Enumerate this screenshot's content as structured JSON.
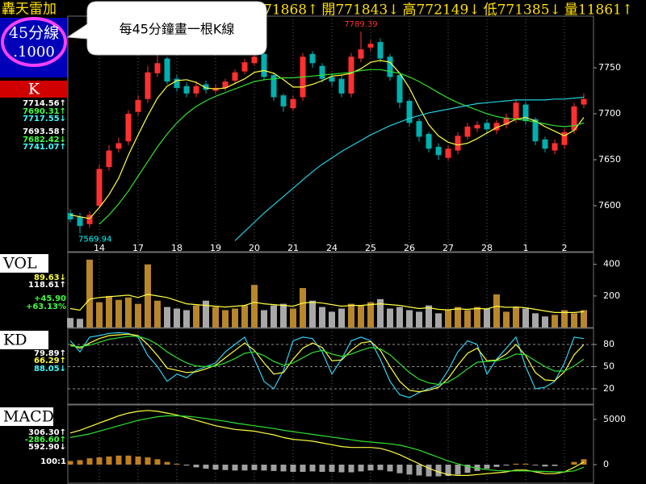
{
  "header": {
    "title": "轟天雷加",
    "quotes": [
      "71868↑",
      "開771843↓",
      "高772149↓",
      "低771385↓",
      "量11861↑"
    ]
  },
  "period": {
    "label": "45分線",
    "value": ".1000"
  },
  "callout": "每45分鐘畫一根K線",
  "chart_data": [
    {
      "type": "candlestick",
      "panel_label": "K",
      "categories": [
        null,
        null,
        null,
        "14",
        null,
        null,
        null,
        "17",
        null,
        null,
        null,
        "18",
        null,
        null,
        null,
        "19",
        null,
        null,
        null,
        "20",
        null,
        null,
        null,
        "21",
        null,
        null,
        null,
        "24",
        null,
        null,
        null,
        "25",
        null,
        null,
        null,
        "26",
        null,
        null,
        null,
        "27",
        null,
        null,
        null,
        "28",
        null,
        null,
        null,
        "1",
        null,
        null,
        null,
        "2",
        null,
        null
      ],
      "open": [
        7592,
        7588,
        7580,
        7600,
        7642,
        7662,
        7670,
        7702,
        7716,
        7744,
        7760,
        7738,
        7730,
        7722,
        7732,
        7725,
        7728,
        7736,
        7746,
        7755,
        7765,
        7742,
        7720,
        7706,
        7718,
        7765,
        7752,
        7740,
        7738,
        7722,
        7760,
        7772,
        7778,
        7762,
        7742,
        7714,
        7692,
        7678,
        7664,
        7652,
        7660,
        7675,
        7684,
        7690,
        7682,
        7688,
        7694,
        7710,
        7694,
        7672,
        7660,
        7666,
        7682,
        7710
      ],
      "high": [
        7596,
        7592,
        7594,
        7645,
        7666,
        7674,
        7704,
        7720,
        7752,
        7768,
        7762,
        7742,
        7734,
        7735,
        7736,
        7732,
        7738,
        7748,
        7760,
        7766,
        7768,
        7745,
        7722,
        7720,
        7766,
        7768,
        7755,
        7744,
        7742,
        7766,
        7789.39,
        7780,
        7782,
        7765,
        7745,
        7716,
        7695,
        7680,
        7668,
        7665,
        7680,
        7690,
        7692,
        7694,
        7693,
        7700,
        7716,
        7713,
        7696,
        7675,
        7672,
        7684,
        7712,
        7722
      ],
      "low": [
        7582,
        7569.94,
        7576,
        7598,
        7638,
        7658,
        7666,
        7698,
        7712,
        7740,
        7732,
        7724,
        7718,
        7718,
        7722,
        7722,
        7725,
        7733,
        7743,
        7752,
        7736,
        7714,
        7702,
        7703,
        7714,
        7750,
        7734,
        7730,
        7718,
        7718,
        7756,
        7768,
        7756,
        7736,
        7706,
        7686,
        7670,
        7658,
        7650,
        7649,
        7656,
        7672,
        7680,
        7678,
        7678,
        7684,
        7690,
        7688,
        7666,
        7658,
        7656,
        7662,
        7678,
        7706
      ],
      "close": [
        7585,
        7578,
        7590,
        7640,
        7660,
        7668,
        7700,
        7715,
        7745,
        7755,
        7735,
        7728,
        7722,
        7730,
        7726,
        7728,
        7735,
        7745,
        7756,
        7762,
        7740,
        7718,
        7708,
        7716,
        7762,
        7755,
        7738,
        7735,
        7722,
        7762,
        7770,
        7776,
        7760,
        7740,
        7712,
        7690,
        7675,
        7662,
        7655,
        7662,
        7676,
        7686,
        7688,
        7683,
        7690,
        7696,
        7712,
        7692,
        7670,
        7662,
        7668,
        7680,
        7708,
        7716
      ],
      "up_color": "#ff3030",
      "down_color": "#00b0b0",
      "high_label_color": "#ff3030",
      "low_label_color": "#00ffff",
      "series": [
        {
          "color": "#ffff40",
          "values": [
            7590,
            7588,
            7586,
            7598,
            7612,
            7630,
            7655,
            7677,
            7698,
            7717,
            7730,
            7736,
            7737,
            7734,
            7728,
            7727,
            7728,
            7733,
            7738,
            7745,
            7747,
            7744,
            7737,
            7729,
            7729,
            7732,
            7736,
            7741,
            7742,
            7744,
            7749,
            7756,
            7758,
            7756,
            7744,
            7728,
            7707,
            7688,
            7676,
            7669,
            7666,
            7668,
            7673,
            7679,
            7685,
            7689,
            7694,
            7696,
            7692,
            7686,
            7681,
            7676,
            7682,
            7696
          ]
        },
        {
          "color": "#30e030",
          "values": [
            null,
            null,
            null,
            7580,
            7590,
            7602,
            7616,
            7632,
            7648,
            7664,
            7678,
            7690,
            7700,
            7708,
            7714,
            7719,
            7723,
            7727,
            7731,
            7735,
            7737,
            7738,
            7739,
            7739,
            7740,
            7741,
            7742,
            7743,
            7744,
            7745,
            7747,
            7748,
            7748,
            7746,
            7744,
            7740,
            7735,
            7729,
            7723,
            7717,
            7712,
            7708,
            7704,
            7700,
            7697,
            7695,
            7694,
            7693,
            7691,
            7689,
            7687,
            7686,
            7687,
            7690
          ]
        },
        {
          "color": "#20d0e0",
          "values": [
            null,
            null,
            null,
            null,
            null,
            null,
            null,
            null,
            null,
            null,
            null,
            null,
            null,
            null,
            null,
            null,
            null,
            7562,
            7572,
            7582,
            7592,
            7601,
            7610,
            7619,
            7628,
            7637,
            7645,
            7652,
            7659,
            7665,
            7671,
            7677,
            7682,
            7687,
            7691,
            7695,
            7698,
            7701,
            7703,
            7705,
            7707,
            7709,
            7711,
            7712,
            7713,
            7714,
            7715,
            7715,
            7715,
            7715,
            7716,
            7716,
            7717,
            7718
          ]
        }
      ],
      "ylim": [
        7560,
        7805
      ],
      "yticks": [
        7600,
        7650,
        7700,
        7750
      ],
      "grid": false,
      "readouts": [
        {
          "text": "7714.56↑",
          "color": "#ffffff"
        },
        {
          "text": "7690.31↑",
          "color": "#40ff40"
        },
        {
          "text": "7717.55↓",
          "color": "#40ffff"
        },
        {
          "text": "7693.58↑",
          "color": "#ffffff"
        },
        {
          "text": "7682.42↓",
          "color": "#40ff40"
        },
        {
          "text": "7741.07↑",
          "color": "#40ffff"
        }
      ]
    },
    {
      "type": "bar",
      "panel_label": "VOL",
      "values": [
        60,
        55,
        430,
        160,
        200,
        175,
        190,
        150,
        400,
        170,
        130,
        120,
        110,
        140,
        170,
        130,
        110,
        120,
        140,
        270,
        110,
        140,
        150,
        120,
        250,
        170,
        130,
        100,
        120,
        150,
        140,
        160,
        180,
        120,
        130,
        110,
        100,
        140,
        90,
        110,
        130,
        110,
        130,
        120,
        210,
        100,
        130,
        120,
        90,
        70,
        80,
        110,
        90,
        110
      ],
      "up_color": "#b8862b",
      "down_color": "#a8a8a8",
      "series": [
        {
          "color": "#ffff40",
          "values": [
            120,
            110,
            180,
            190,
            195,
            200,
            205,
            190,
            210,
            200,
            190,
            170,
            150,
            145,
            140,
            135,
            130,
            135,
            140,
            160,
            150,
            145,
            140,
            135,
            155,
            160,
            155,
            145,
            135,
            140,
            140,
            145,
            150,
            145,
            140,
            130,
            120,
            125,
            115,
            112,
            118,
            115,
            120,
            118,
            135,
            128,
            130,
            125,
            115,
            105,
            95,
            95,
            95,
            100
          ]
        }
      ],
      "ylim": [
        0,
        465
      ],
      "yticks": [
        200,
        400
      ],
      "grid": false,
      "readouts": [
        {
          "text": "89.63↓",
          "color": "#ffff40"
        },
        {
          "text": "118.61↑",
          "color": "#ffffff"
        },
        {
          "text": "+45.90",
          "color": "#40ff40"
        },
        {
          "text": "+63.13%",
          "color": "#40ff40"
        }
      ]
    },
    {
      "type": "line",
      "panel_label": "KD",
      "series": [
        {
          "color": "#30d0f0",
          "values": [
            85,
            70,
            90,
            92,
            95,
            96,
            95,
            90,
            65,
            50,
            30,
            40,
            35,
            45,
            50,
            55,
            70,
            80,
            90,
            60,
            30,
            20,
            45,
            85,
            90,
            88,
            70,
            40,
            60,
            85,
            90,
            85,
            60,
            30,
            12,
            8,
            15,
            20,
            25,
            45,
            70,
            85,
            80,
            40,
            60,
            75,
            90,
            50,
            20,
            22,
            30,
            55,
            90,
            88
          ]
        },
        {
          "color": "#ffff40",
          "values": [
            80,
            75,
            82,
            88,
            92,
            93,
            94,
            92,
            80,
            65,
            48,
            45,
            42,
            43,
            47,
            52,
            62,
            72,
            82,
            72,
            55,
            40,
            42,
            60,
            75,
            82,
            76,
            58,
            59,
            72,
            82,
            84,
            72,
            50,
            30,
            18,
            16,
            18,
            22,
            34,
            52,
            68,
            75,
            58,
            59,
            67,
            80,
            65,
            42,
            32,
            31,
            43,
            66,
            79.89
          ]
        },
        {
          "color": "#30e030",
          "values": [
            78,
            77,
            79,
            83,
            87,
            89,
            91,
            91,
            87,
            80,
            70,
            62,
            55,
            51,
            50,
            51,
            55,
            61,
            68,
            70,
            65,
            57,
            52,
            55,
            62,
            69,
            72,
            67,
            64,
            67,
            72,
            76,
            74,
            66,
            54,
            42,
            33,
            28,
            26,
            29,
            37,
            47,
            56,
            57,
            58,
            61,
            67,
            66,
            58,
            50,
            44,
            44,
            51,
            60
          ]
        }
      ],
      "ylim": [
        0,
        100
      ],
      "yticks": [
        20,
        50,
        80
      ],
      "grid": true,
      "readouts": [
        {
          "text": "79.89↑",
          "color": "#ffffff"
        },
        {
          "text": "66.29↑",
          "color": "#ffff40"
        },
        {
          "text": "88.05↓",
          "color": "#40ffff"
        }
      ]
    },
    {
      "type": "macd",
      "panel_label": "MACD",
      "values": [
        400,
        500,
        700,
        800,
        900,
        1000,
        1000,
        900,
        800,
        600,
        300,
        100,
        -100,
        -300,
        -450,
        -550,
        -600,
        -650,
        -650,
        -600,
        -650,
        -700,
        -750,
        -800,
        -800,
        -750,
        -800,
        -800,
        -850,
        -850,
        -750,
        -650,
        -600,
        -750,
        -950,
        -1100,
        -1200,
        -1300,
        -1300,
        -1250,
        -1100,
        -900,
        -700,
        -450,
        -250,
        -100,
        100,
        100,
        -80,
        -200,
        -150,
        0,
        300,
        600
      ],
      "up_color": "#c08020",
      "down_color": "#a0a0a0",
      "series": [
        {
          "color": "#ffff40",
          "values": [
            3500,
            3800,
            4200,
            4600,
            5000,
            5400,
            5700,
            5900,
            6000,
            5900,
            5700,
            5500,
            5200,
            4900,
            4600,
            4300,
            4100,
            3900,
            3800,
            3700,
            3500,
            3300,
            3000,
            2800,
            2700,
            2600,
            2400,
            2200,
            2000,
            1900,
            1900,
            1900,
            1800,
            1500,
            1100,
            600,
            100,
            -400,
            -800,
            -1100,
            -1200,
            -1200,
            -1100,
            -1000,
            -900,
            -800,
            -600,
            -600,
            -800,
            -1000,
            -1000,
            -800,
            -300,
            306.3
          ]
        },
        {
          "color": "#30e030",
          "values": [
            3000,
            3200,
            3400,
            3700,
            4000,
            4300,
            4600,
            4900,
            5100,
            5300,
            5400,
            5400,
            5350,
            5250,
            5100,
            4950,
            4800,
            4600,
            4450,
            4300,
            4150,
            4000,
            3800,
            3650,
            3500,
            3350,
            3200,
            3050,
            2900,
            2750,
            2600,
            2500,
            2400,
            2300,
            2150,
            1900,
            1600,
            1200,
            800,
            400,
            100,
            -200,
            -400,
            -550,
            -650,
            -700,
            -700,
            -700,
            -720,
            -760,
            -800,
            -800,
            -700,
            -286.6
          ]
        }
      ],
      "ylim": [
        -2000,
        6300
      ],
      "yticks": [
        0,
        5000
      ],
      "grid": false,
      "readouts": [
        {
          "text": "306.30↑",
          "color": "#ffffff"
        },
        {
          "text": "-286.60↑",
          "color": "#40ff40"
        },
        {
          "text": "592.90↓",
          "color": "#ffffff"
        }
      ],
      "scale_note": "100:1"
    }
  ]
}
